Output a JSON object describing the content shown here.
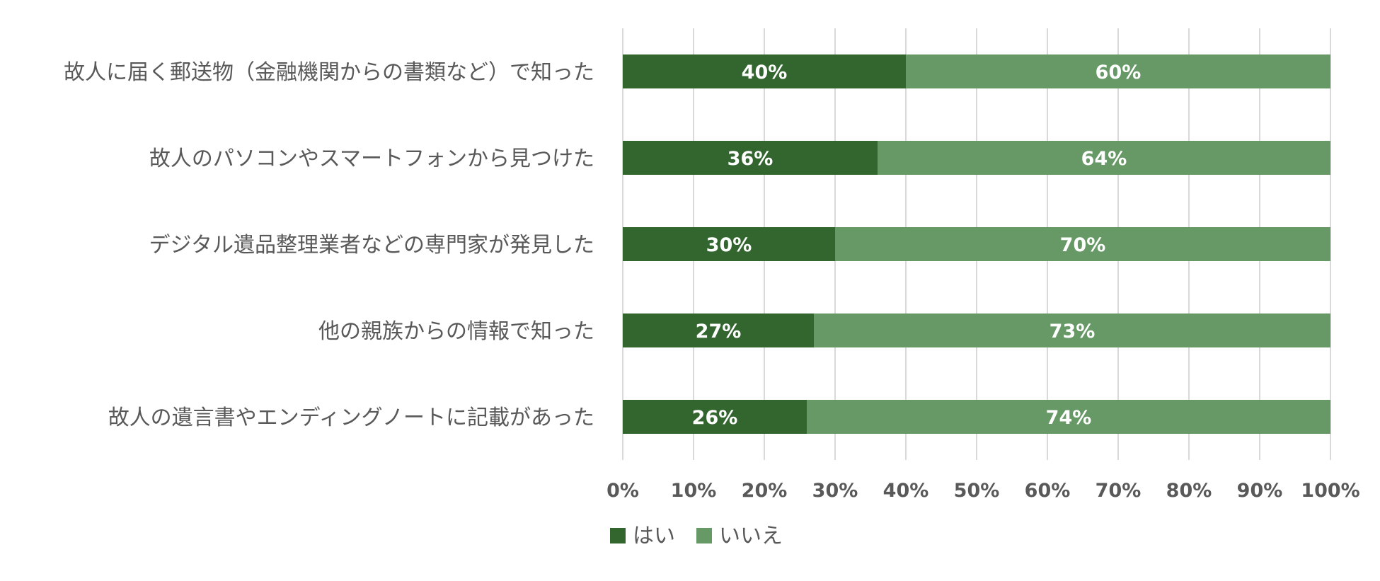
{
  "chart_data": {
    "type": "bar",
    "orientation": "horizontal",
    "stacked": "percent",
    "categories": [
      "故人に届く郵送物（金融機関からの書類など）で知った",
      "故人のパソコンやスマートフォンから見つけた",
      "デジタル遺品整理業者などの専門家が発見した",
      "他の親族からの情報で知った",
      "故人の遺言書やエンディングノートに記載があった"
    ],
    "series": [
      {
        "name": "はい",
        "values": [
          40,
          36,
          30,
          27,
          26
        ],
        "labels": [
          "40%",
          "36%",
          "30%",
          "27%",
          "26%"
        ],
        "color": "#33662f"
      },
      {
        "name": "いいえ",
        "values": [
          60,
          64,
          70,
          73,
          74
        ],
        "labels": [
          "60%",
          "64%",
          "70%",
          "73%",
          "74%"
        ],
        "color": "#669966"
      }
    ],
    "xlim": [
      0,
      100
    ],
    "xticks": [
      "0%",
      "10%",
      "20%",
      "30%",
      "40%",
      "50%",
      "60%",
      "70%",
      "80%",
      "90%",
      "100%"
    ],
    "grid": true,
    "legend": "bottom"
  }
}
